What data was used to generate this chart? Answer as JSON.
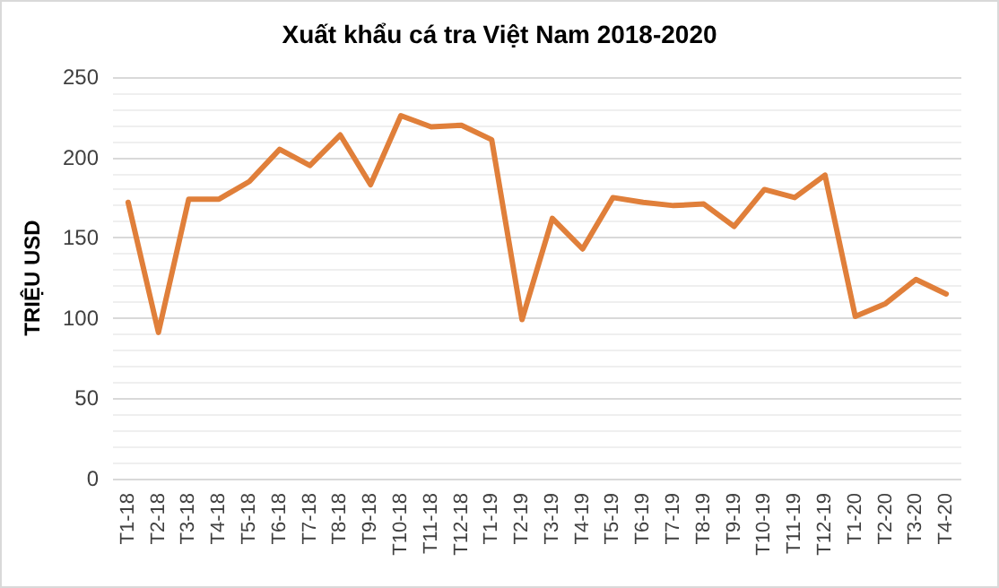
{
  "chart_data": {
    "type": "line",
    "title": "Xuất khẩu cá tra Việt Nam 2018-2020",
    "ylabel": "TRIỆU USD",
    "categories": [
      "T1-18",
      "T2-18",
      "T3-18",
      "T4-18",
      "T5-18",
      "T6-18",
      "T7-18",
      "T8-18",
      "T9-18",
      "T10-18",
      "T11-18",
      "T12-18",
      "T1-19",
      "T2-19",
      "T3-19",
      "T4-19",
      "T5-19",
      "T6-19",
      "T7-19",
      "T8-19",
      "T9-19",
      "T10-19",
      "T11-19",
      "T12-19",
      "T1-20",
      "T2-20",
      "T3-20",
      "T4-20"
    ],
    "series": [
      {
        "color": "#e07f3a",
        "values": [
          172,
          91,
          174,
          174,
          185,
          205,
          195,
          214,
          183,
          226,
          219,
          220,
          211,
          99,
          162,
          143,
          175,
          172,
          170,
          171,
          157,
          180,
          175,
          189,
          101,
          109,
          124,
          115
        ]
      }
    ],
    "ylim": [
      0,
      250
    ],
    "yticks": [
      0,
      50,
      100,
      150,
      200,
      250
    ],
    "grid": "y",
    "marker": "none",
    "line_style": "solid"
  }
}
